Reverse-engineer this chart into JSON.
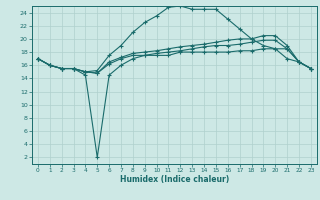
{
  "title": "",
  "xlabel": "Humidex (Indice chaleur)",
  "bg_color": "#cde8e5",
  "line_color": "#1a6b6b",
  "grid_color": "#b0d0ce",
  "xlim": [
    -0.5,
    23.5
  ],
  "ylim": [
    1,
    25
  ],
  "xticks": [
    0,
    1,
    2,
    3,
    4,
    5,
    6,
    7,
    8,
    9,
    10,
    11,
    12,
    13,
    14,
    15,
    16,
    17,
    18,
    19,
    20,
    21,
    22,
    23
  ],
  "yticks": [
    2,
    4,
    6,
    8,
    10,
    12,
    14,
    16,
    18,
    20,
    22,
    24
  ],
  "line_top_x": [
    0,
    1,
    2,
    3,
    4,
    5,
    6,
    7,
    8,
    9,
    10,
    11,
    12,
    13,
    14,
    15,
    16,
    17,
    18,
    19,
    20,
    21,
    22,
    23
  ],
  "line_top_y": [
    17,
    16,
    15.5,
    15.5,
    15,
    15.2,
    17.5,
    19,
    21,
    22.5,
    23.5,
    24.8,
    25,
    24.5,
    24.5,
    24.5,
    23,
    21.5,
    20,
    19,
    18.5,
    18.5,
    16.5,
    15.5
  ],
  "line_mid1_x": [
    0,
    1,
    2,
    3,
    4,
    5,
    6,
    7,
    8,
    9,
    10,
    11,
    12,
    13,
    14,
    15,
    16,
    17,
    18,
    19,
    20,
    21,
    22,
    23
  ],
  "line_mid1_y": [
    17,
    16,
    15.5,
    15.5,
    15,
    14.8,
    16.5,
    17.2,
    17.8,
    18,
    18.2,
    18.5,
    18.8,
    19,
    19.2,
    19.5,
    19.8,
    20,
    20,
    20.5,
    20.5,
    19,
    16.5,
    15.5
  ],
  "line_mid2_x": [
    0,
    1,
    2,
    3,
    4,
    5,
    6,
    7,
    8,
    9,
    10,
    11,
    12,
    13,
    14,
    15,
    16,
    17,
    18,
    19,
    20,
    21,
    22,
    23
  ],
  "line_mid2_y": [
    17,
    16,
    15.5,
    15.5,
    15,
    14.8,
    16.2,
    17,
    17.5,
    17.5,
    17.8,
    18,
    18.2,
    18.5,
    18.8,
    19,
    19,
    19.2,
    19.5,
    19.8,
    19.8,
    18.5,
    16.5,
    15.5
  ],
  "line_bot_x": [
    0,
    1,
    2,
    3,
    4,
    5,
    6,
    7,
    8,
    9,
    10,
    11,
    12,
    13,
    14,
    15,
    16,
    17,
    18,
    19,
    20,
    21,
    22,
    23
  ],
  "line_bot_y": [
    17,
    16,
    15.5,
    15.5,
    14.5,
    2,
    14.5,
    16,
    17,
    17.5,
    17.5,
    17.5,
    18,
    18,
    18,
    18,
    18,
    18.2,
    18.2,
    18.5,
    18.5,
    17,
    16.5,
    15.5
  ]
}
